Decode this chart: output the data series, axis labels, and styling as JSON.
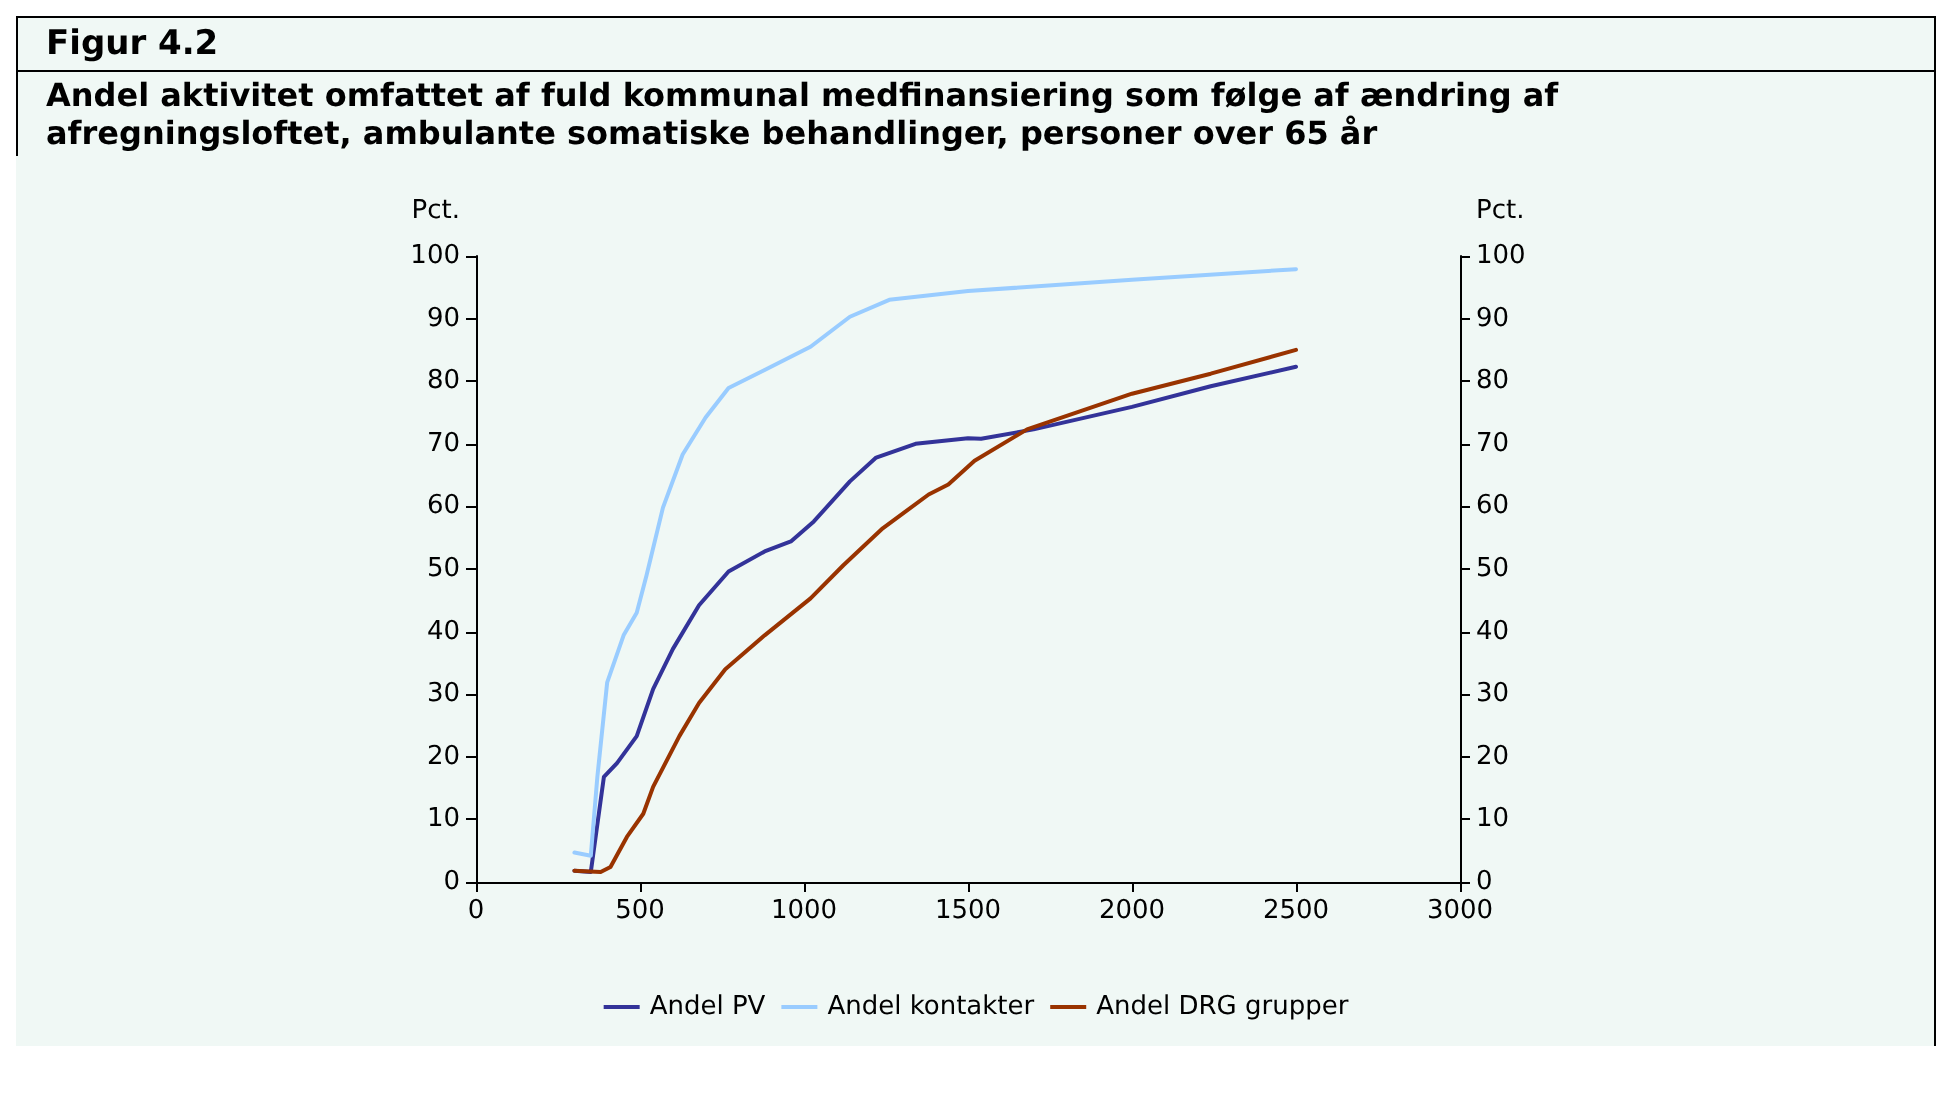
{
  "chart_data": {
    "type": "line",
    "title": "Figur 4.2",
    "subtitle": "Andel aktivitet omfattet af fuld kommunal medfinansiering som følge af ændring af afregningsloftet, ambulante somatiske behandlinger, personer over 65 år",
    "ylabel": "Pct.",
    "y2label": "Pct.",
    "xlim": [
      0,
      3000
    ],
    "xticks": [
      0,
      500,
      1000,
      1500,
      2000,
      2500,
      3000
    ],
    "ylim": [
      0,
      100
    ],
    "yticks": [
      0,
      10,
      20,
      30,
      40,
      50,
      60,
      70,
      80,
      90,
      100
    ],
    "y2lim": [
      0,
      100
    ],
    "y2ticks": [
      0,
      10,
      20,
      30,
      40,
      50,
      60,
      70,
      80,
      90,
      100
    ],
    "grid": false,
    "legend": "bottom",
    "marker": "none",
    "line_style": "solid",
    "series": [
      {
        "name": "Andel PV",
        "color": "#333399",
        "x": [
          300,
          350,
          390,
          430,
          490,
          540,
          600,
          680,
          770,
          880,
          960,
          1030,
          1140,
          1220,
          1340,
          1500,
          1540,
          1700,
          2000,
          2240,
          2500
        ],
        "values": [
          1.8,
          1.6,
          16.8,
          19,
          23.3,
          30.8,
          37.2,
          44.2,
          49.6,
          52.8,
          54.4,
          57.6,
          64,
          67.8,
          70,
          70.9,
          70.8,
          72.3,
          75.9,
          79.2,
          82.3
        ]
      },
      {
        "name": "Andel kontakter",
        "color": "#99ccff",
        "x": [
          300,
          350,
          370,
          400,
          450,
          490,
          520,
          570,
          630,
          700,
          770,
          880,
          1020,
          1140,
          1260,
          1500,
          2000,
          2500
        ],
        "values": [
          4.7,
          4.2,
          16.8,
          31.9,
          39.4,
          43,
          49,
          59.8,
          68.3,
          74.2,
          78.9,
          81.8,
          85.5,
          90.3,
          93,
          94.4,
          96.2,
          97.9
        ]
      },
      {
        "name": "Andel DRG grupper",
        "color": "#993300",
        "x": [
          300,
          380,
          410,
          460,
          510,
          540,
          620,
          680,
          760,
          880,
          1020,
          1120,
          1240,
          1380,
          1440,
          1520,
          1680,
          2000,
          2240,
          2500
        ],
        "values": [
          1.8,
          1.6,
          2.4,
          7.2,
          10.9,
          15.2,
          23.3,
          28.6,
          34,
          39.4,
          45.3,
          50.6,
          56.5,
          61.9,
          63.5,
          67.3,
          72.3,
          78,
          81.2,
          85
        ]
      }
    ]
  }
}
